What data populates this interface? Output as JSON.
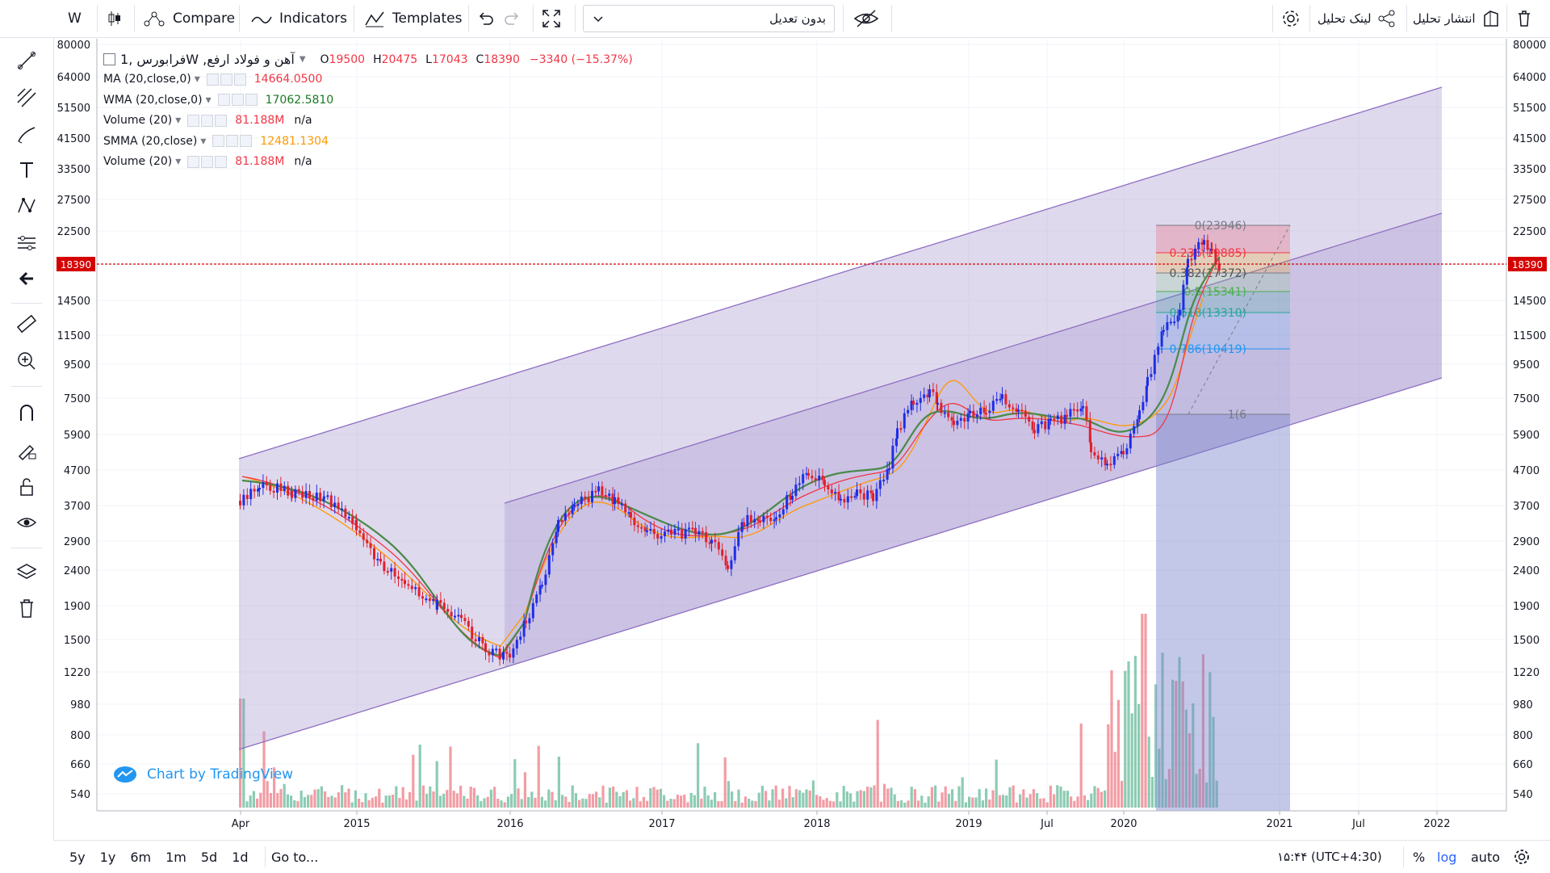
{
  "toolbar": {
    "interval": "W",
    "compare": "Compare",
    "indicators": "Indicators",
    "templates": "Templates",
    "symbol_input": "بدون تعدیل",
    "link_analysis": "لینک تحلیل",
    "publish_analysis": "انتشار تحلیل"
  },
  "legend": {
    "title": "فرابورس ,1W ,آهن و فولاد ارفع",
    "open_label": "O",
    "open": "19500",
    "high_label": "H",
    "high": "20475",
    "low_label": "L",
    "low": "17043",
    "close_label": "C",
    "close": "18390",
    "change": "−3340 (−15.37%)",
    "indicators": [
      {
        "name": "MA (20,close,0)",
        "value": "14664.0500",
        "value2": "",
        "color": "#f23645"
      },
      {
        "name": "WMA (20,close,0)",
        "value": "17062.5810",
        "value2": "",
        "color": "#1b7a22"
      },
      {
        "name": "Volume (20)",
        "value": "81.188M",
        "value2": "n/a",
        "color": "#f23645"
      },
      {
        "name": "SMMA (20,close)",
        "value": "12481.1304",
        "value2": "",
        "color": "#ff9800"
      },
      {
        "name": "Volume (20)",
        "value": "81.188M",
        "value2": "n/a",
        "color": "#f23645"
      }
    ]
  },
  "price_axis": {
    "ticks": [
      "80000",
      "64000",
      "51500",
      "41500",
      "33500",
      "27500",
      "22500",
      "18390",
      "14500",
      "11500",
      "9500",
      "7500",
      "5900",
      "4700",
      "3700",
      "2900",
      "2400",
      "1900",
      "1500",
      "1220",
      "980",
      "800",
      "660",
      "540"
    ],
    "last_price": "18390"
  },
  "time_axis": {
    "ticks": [
      "Apr",
      "2015",
      "2016",
      "2017",
      "2018",
      "2019",
      "Jul",
      "2020",
      "2021",
      "Jul",
      "2022"
    ]
  },
  "fibonacci": {
    "levels": [
      {
        "label": "0(23946)",
        "color": "#787b86"
      },
      {
        "label": "0.236(19885)",
        "color": "#f23645"
      },
      {
        "label": "0.382(17372)",
        "color": "#555"
      },
      {
        "label": "0.5(15341)",
        "color": "#4caf50"
      },
      {
        "label": "0.618(13310)",
        "color": "#26a69a"
      },
      {
        "label": "0.786(10419)",
        "color": "#2196f3"
      },
      {
        "label": "1(6",
        "color": "#787b86"
      }
    ]
  },
  "watermark": "Chart by TradingView",
  "bottom": {
    "ranges": [
      "5y",
      "1y",
      "6m",
      "1m",
      "5d",
      "1d"
    ],
    "goto": "Go to...",
    "time": "۱۵:۴۴ (UTC+4:30)",
    "percent": "%",
    "log": "log",
    "auto": "auto"
  },
  "colors": {
    "up": "#1f2ee6",
    "down": "#e0212d",
    "channel": "#9b8ac8",
    "accent": "#2962ff"
  }
}
